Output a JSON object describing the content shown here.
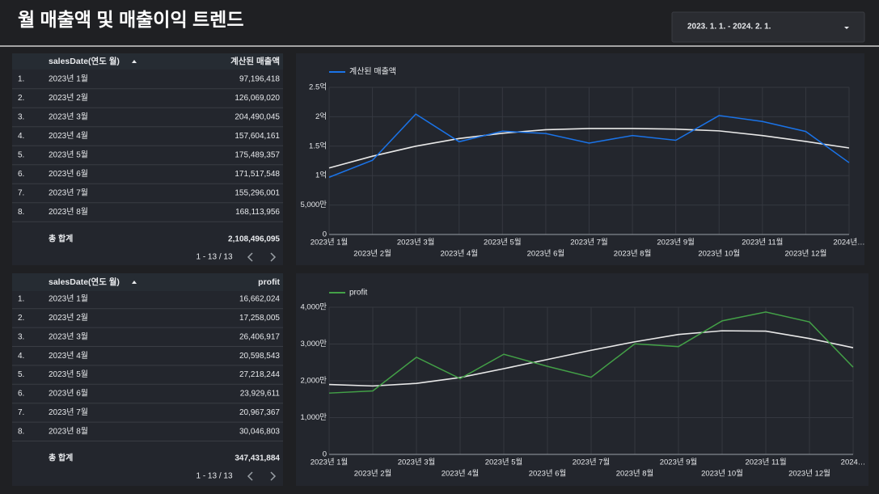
{
  "header": {
    "title": "월 매출액 및 매출이익 트렌드",
    "date_range": "2023. 1. 1. - 2024. 2. 1."
  },
  "tables": [
    {
      "columns": [
        "salesDate(연도 월)",
        "계산된 매출액"
      ],
      "rows": [
        [
          "1.",
          "2023년 1월",
          "97,196,418"
        ],
        [
          "2.",
          "2023년 2월",
          "126,069,020"
        ],
        [
          "3.",
          "2023년 3월",
          "204,490,045"
        ],
        [
          "4.",
          "2023년 4월",
          "157,604,161"
        ],
        [
          "5.",
          "2023년 5월",
          "175,489,357"
        ],
        [
          "6.",
          "2023년 6월",
          "171,517,548"
        ],
        [
          "7.",
          "2023년 7월",
          "155,296,001"
        ],
        [
          "8.",
          "2023년 8월",
          "168,113,956"
        ]
      ],
      "total_label": "총 합계",
      "total": "2,108,496,095",
      "pagination": "1 - 13 / 13"
    },
    {
      "columns": [
        "salesDate(연도 월)",
        "profit"
      ],
      "rows": [
        [
          "1.",
          "2023년 1월",
          "16,662,024"
        ],
        [
          "2.",
          "2023년 2월",
          "17,258,005"
        ],
        [
          "3.",
          "2023년 3월",
          "26,406,917"
        ],
        [
          "4.",
          "2023년 4월",
          "20,598,543"
        ],
        [
          "5.",
          "2023년 5월",
          "27,218,244"
        ],
        [
          "6.",
          "2023년 6월",
          "23,929,611"
        ],
        [
          "7.",
          "2023년 7월",
          "20,967,367"
        ],
        [
          "8.",
          "2023년 8월",
          "30,046,803"
        ]
      ],
      "total_label": "총 합계",
      "total": "347,431,884",
      "pagination": "1 - 13 / 13"
    }
  ],
  "chart_data": [
    {
      "type": "line",
      "categories": [
        "2023년 1월",
        "2023년 2월",
        "2023년 3월",
        "2023년 4월",
        "2023년 5월",
        "2023년 6월",
        "2023년 7월",
        "2023년 8월",
        "2023년 9월",
        "2023년 10월",
        "2023년 11월",
        "2023년 12월",
        "2024년…"
      ],
      "series": [
        {
          "name": "계산된 매출액",
          "color": "#1a73e8",
          "values": [
            97196418,
            126069020,
            204490045,
            157604161,
            175489357,
            171517548,
            155296001,
            168113956,
            160000000,
            202000000,
            192000000,
            175000000,
            122000000
          ]
        }
      ],
      "trend": {
        "color": "#e8e8e8",
        "values": [
          113000000,
          133000000,
          150000000,
          163000000,
          172000000,
          178000000,
          180000000,
          180000000,
          179000000,
          176000000,
          168000000,
          158000000,
          147000000
        ]
      },
      "ylim": [
        0,
        250000000
      ],
      "yticks": [
        0,
        {
          "value": 50000000,
          "label": "5,000만"
        },
        {
          "value": 100000000,
          "label": "1억"
        },
        {
          "value": 150000000,
          "label": "1.5억"
        },
        {
          "value": 200000000,
          "label": "2억"
        },
        {
          "value": 250000000,
          "label": "2.5억"
        }
      ],
      "grid": true
    },
    {
      "type": "line",
      "categories": [
        "2023년 1월",
        "2023년 2월",
        "2023년 3월",
        "2023년 4월",
        "2023년 5월",
        "2023년 6월",
        "2023년 7월",
        "2023년 8월",
        "2023년 9월",
        "2023년 10월",
        "2023년 11월",
        "2023년 12월",
        "2024…"
      ],
      "series": [
        {
          "name": "profit",
          "color": "#43a047",
          "values": [
            16662024,
            17258005,
            26406917,
            20598543,
            27218244,
            23929611,
            20967367,
            30046803,
            29300000,
            36300000,
            38700000,
            36000000,
            23700000
          ]
        }
      ],
      "trend": {
        "color": "#e8e8e8",
        "values": [
          19000000,
          18600000,
          19300000,
          20900000,
          23300000,
          25800000,
          28300000,
          30600000,
          32600000,
          33600000,
          33500000,
          31500000,
          29000000
        ]
      },
      "ylim": [
        0,
        40000000
      ],
      "yticks": [
        0,
        {
          "value": 10000000,
          "label": "1,000만"
        },
        {
          "value": 20000000,
          "label": "2,000만"
        },
        {
          "value": 30000000,
          "label": "3,000만"
        },
        {
          "value": 40000000,
          "label": "4,000만"
        }
      ],
      "grid": true
    }
  ]
}
